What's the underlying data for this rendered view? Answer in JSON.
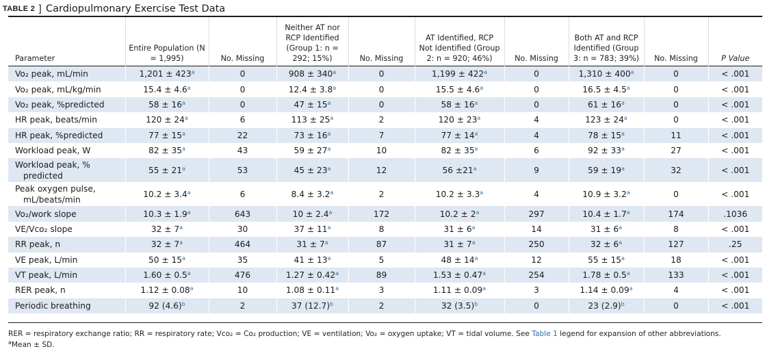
{
  "caption": {
    "label": "TABLE 2",
    "bracket": "]",
    "title": "Cardiopulmonary Exercise Test Data"
  },
  "columns": [
    "Parameter",
    "Entire Population (N = 1,995)",
    "No. Missing",
    "Neither AT nor RCP Identified (Group 1: n = 292; 15%)",
    "No. Missing",
    "AT Identified, RCP Not Identified (Group 2: n = 920; 46%)",
    "No. Missing",
    "Both AT and RCP Identified (Group 3: n = 783; 39%)",
    "No. Missing",
    "P Value"
  ],
  "rows": [
    {
      "param": "Vo₂ peak, mL/min",
      "c1": "1,201 ± 423",
      "s1": "a",
      "m1": "0",
      "c2": "908 ± 340",
      "s2": "a",
      "m2": "0",
      "c3": "1,199 ± 422",
      "s3": "a",
      "m3": "0",
      "c4": "1,310 ± 400",
      "s4": "a",
      "m4": "0",
      "p": "< .001"
    },
    {
      "param": "Vo₂ peak, mL/kg/min",
      "c1": "15.4 ± 4.6",
      "s1": "a",
      "m1": "0",
      "c2": "12.4 ± 3.8",
      "s2": "a",
      "m2": "0",
      "c3": "15.5 ± 4.6",
      "s3": "a",
      "m3": "0",
      "c4": "16.5 ± 4.5",
      "s4": "a",
      "m4": "0",
      "p": "< .001"
    },
    {
      "param": "Vo₂ peak, %predicted",
      "c1": "58 ± 16",
      "s1": "a",
      "m1": "0",
      "c2": "47 ± 15",
      "s2": "a",
      "m2": "0",
      "c3": "58 ± 16",
      "s3": "a",
      "m3": "0",
      "c4": "61 ± 16",
      "s4": "a",
      "m4": "0",
      "p": "< .001"
    },
    {
      "param": "HR peak, beats/min",
      "c1": "120 ± 24",
      "s1": "a",
      "m1": "6",
      "c2": "113 ± 25",
      "s2": "a",
      "m2": "2",
      "c3": "120 ± 23",
      "s3": "a",
      "m3": "4",
      "c4": "123 ± 24",
      "s4": "a",
      "m4": "0",
      "p": "< .001"
    },
    {
      "param": "HR peak, %predicted",
      "c1": "77 ± 15",
      "s1": "a",
      "m1": "22",
      "c2": "73 ± 16",
      "s2": "a",
      "m2": "7",
      "c3": "77 ± 14",
      "s3": "a",
      "m3": "4",
      "c4": "78 ± 15",
      "s4": "a",
      "m4": "11",
      "p": "< .001"
    },
    {
      "param": "Workload peak, W",
      "c1": "82 ± 35",
      "s1": "a",
      "m1": "43",
      "c2": "59 ± 27",
      "s2": "a",
      "m2": "10",
      "c3": "82 ± 35",
      "s3": "a",
      "m3": "6",
      "c4": "92 ± 33",
      "s4": "a",
      "m4": "27",
      "p": "< .001"
    },
    {
      "param": "Workload peak, %",
      "param2": "predicted",
      "c1": "55 ± 21",
      "s1": "a",
      "m1": "53",
      "c2": "45 ± 23",
      "s2": "a",
      "m2": "12",
      "c3": "56 ±21",
      "s3": "a",
      "m3": "9",
      "c4": "59 ± 19",
      "s4": "a",
      "m4": "32",
      "p": "< .001"
    },
    {
      "param": "Peak oxygen pulse,",
      "param2": "mL/beats/min",
      "c1": "10.2 ± 3.4",
      "s1": "a",
      "m1": "6",
      "c2": "8.4 ± 3.2",
      "s2": "a",
      "m2": "2",
      "c3": "10.2 ± 3.3",
      "s3": "a",
      "m3": "4",
      "c4": "10.9 ± 3.2",
      "s4": "a",
      "m4": "0",
      "p": "< .001"
    },
    {
      "param": "Vo₂/work slope",
      "c1": "10.3 ± 1.9",
      "s1": "a",
      "m1": "643",
      "c2": "10 ± 2.4",
      "s2": "a",
      "m2": "172",
      "c3": "10.2 ± 2",
      "s3": "a",
      "m3": "297",
      "c4": "10.4 ± 1.7",
      "s4": "a",
      "m4": "174",
      "p": ".1036"
    },
    {
      "param": "VE/Vco₂ slope",
      "c1": "32 ± 7",
      "s1": "a",
      "m1": "30",
      "c2": "37 ± 11",
      "s2": "a",
      "m2": "8",
      "c3": "31 ± 6",
      "s3": "a",
      "m3": "14",
      "c4": "31 ± 6",
      "s4": "a",
      "m4": "8",
      "p": "< .001"
    },
    {
      "param": "RR peak, n",
      "c1": "32 ± 7",
      "s1": "a",
      "m1": "464",
      "c2": "31 ± 7",
      "s2": "a",
      "m2": "87",
      "c3": "31 ± 7",
      "s3": "a",
      "m3": "250",
      "c4": "32 ± 6",
      "s4": "a",
      "m4": "127",
      "p": ".25"
    },
    {
      "param": "VE peak, L/min",
      "c1": "50 ± 15",
      "s1": "a",
      "m1": "35",
      "c2": "41 ± 13",
      "s2": "a",
      "m2": "5",
      "c3": "48 ± 14",
      "s3": "a",
      "m3": "12",
      "c4": "55 ± 15",
      "s4": "a",
      "m4": "18",
      "p": "< .001"
    },
    {
      "param": "VT peak, L/min",
      "c1": "1.60 ± 0.5",
      "s1": "a",
      "m1": "476",
      "c2": "1.27 ± 0.42",
      "s2": "a",
      "m2": "89",
      "c3": "1.53 ± 0.47",
      "s3": "a",
      "m3": "254",
      "c4": "1.78 ± 0.5",
      "s4": "a",
      "m4": "133",
      "p": "< .001"
    },
    {
      "param": "RER peak, n",
      "c1": "1.12 ± 0.08",
      "s1": "a",
      "m1": "10",
      "c2": "1.08 ± 0.11",
      "s2": "a",
      "m2": "3",
      "c3": "1.11 ± 0.09",
      "s3": "a",
      "m3": "3",
      "c4": "1.14 ± 0.09",
      "s4": "a",
      "m4": "4",
      "p": "< .001"
    },
    {
      "param": "Periodic breathing",
      "c1": "92 (4.6)",
      "s1": "b",
      "m1": "2",
      "c2": "37 (12.7)",
      "s2": "b",
      "m2": "2",
      "c3": "32 (3.5)",
      "s3": "b",
      "m3": "0",
      "c4": "23 (2.9)",
      "s4": "b",
      "m4": "0",
      "p": "< .001"
    }
  ],
  "footnote": {
    "text_before": "RER = respiratory exchange ratio; RR = respiratory rate; Vco₂ = Co₂ production; VE = ventilation; Vo₂ = oxygen uptake; VT = tidal volume. See ",
    "link": "Table 1",
    "text_after": " legend for expansion of other abbreviations.",
    "note_a_mark": "a",
    "note_a_text": "Mean ± SD."
  },
  "colors": {
    "stripe": "#dfe8f2",
    "link": "#2a6fa8"
  }
}
